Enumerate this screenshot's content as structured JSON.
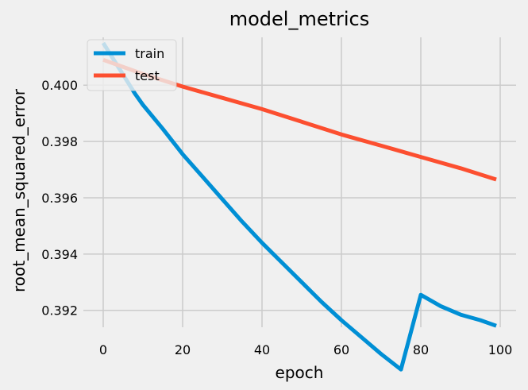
{
  "chart_data": {
    "type": "line",
    "title": "model_metrics",
    "xlabel": "epoch",
    "ylabel": "root_mean_squared_error",
    "xlim": [
      -5,
      104
    ],
    "ylim": [
      0.3914,
      0.4017
    ],
    "xticks": [
      0,
      20,
      40,
      60,
      80,
      100
    ],
    "yticks": [
      0.392,
      0.394,
      0.396,
      0.398,
      0.4
    ],
    "ytick_labels": [
      "0.392",
      "0.394",
      "0.396",
      "0.398",
      "0.400"
    ],
    "grid": true,
    "legend_position": "upper-left",
    "series": [
      {
        "name": "train",
        "color": "#008fd5",
        "x": [
          0,
          2,
          4,
          6,
          8,
          10,
          15,
          20,
          25,
          30,
          35,
          40,
          45,
          50,
          55,
          60,
          65,
          70,
          75,
          80,
          85,
          90,
          95,
          99
        ],
        "y": [
          0.4015,
          0.40105,
          0.4006,
          0.40015,
          0.3997,
          0.3993,
          0.39845,
          0.39755,
          0.39675,
          0.39595,
          0.39515,
          0.3944,
          0.3937,
          0.393,
          0.3923,
          0.39165,
          0.39105,
          0.39045,
          0.3899,
          0.39255,
          0.39215,
          0.39185,
          0.39165,
          0.39145
        ]
      },
      {
        "name": "test",
        "color": "#fc4f30",
        "x": [
          0,
          10,
          20,
          30,
          40,
          50,
          60,
          70,
          80,
          90,
          99
        ],
        "y": [
          0.4009,
          0.4004,
          0.39995,
          0.39955,
          0.39915,
          0.3987,
          0.39825,
          0.39785,
          0.39745,
          0.39705,
          0.39665
        ]
      }
    ]
  }
}
